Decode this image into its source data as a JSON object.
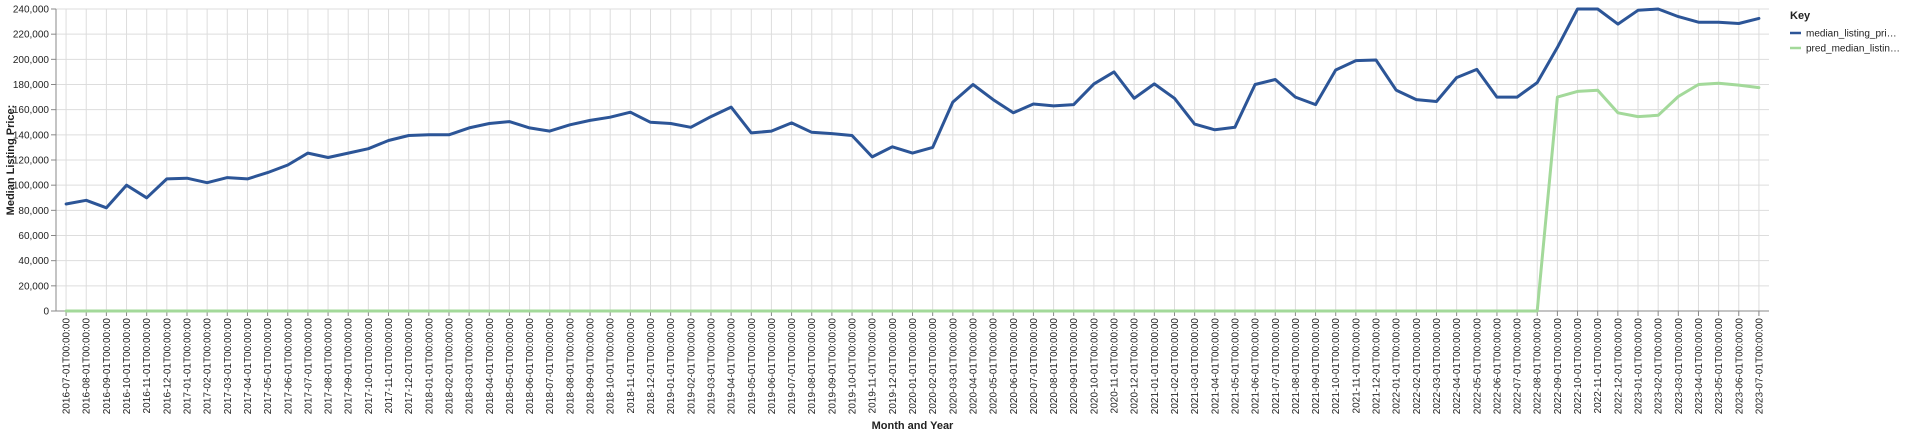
{
  "chart_data": {
    "type": "line",
    "xlabel": "Month and Year",
    "ylabel": "Median Listing Price:",
    "ylim": [
      0,
      240000
    ],
    "yticks": [
      "0",
      "20,000",
      "40,000",
      "60,000",
      "80,000",
      "100,000",
      "120,000",
      "140,000",
      "160,000",
      "180,000",
      "200,000",
      "220,000",
      "240,000"
    ],
    "grid": true,
    "legend_title": "Key",
    "legend_position": "top-right",
    "x": [
      "2016-07-01T00:00:00",
      "2016-08-01T00:00:00",
      "2016-09-01T00:00:00",
      "2016-10-01T00:00:00",
      "2016-11-01T00:00:00",
      "2016-12-01T00:00:00",
      "2017-01-01T00:00:00",
      "2017-02-01T00:00:00",
      "2017-03-01T00:00:00",
      "2017-04-01T00:00:00",
      "2017-05-01T00:00:00",
      "2017-06-01T00:00:00",
      "2017-07-01T00:00:00",
      "2017-08-01T00:00:00",
      "2017-09-01T00:00:00",
      "2017-10-01T00:00:00",
      "2017-11-01T00:00:00",
      "2017-12-01T00:00:00",
      "2018-01-01T00:00:00",
      "2018-02-01T00:00:00",
      "2018-03-01T00:00:00",
      "2018-04-01T00:00:00",
      "2018-05-01T00:00:00",
      "2018-06-01T00:00:00",
      "2018-07-01T00:00:00",
      "2018-08-01T00:00:00",
      "2018-09-01T00:00:00",
      "2018-10-01T00:00:00",
      "2018-11-01T00:00:00",
      "2018-12-01T00:00:00",
      "2019-01-01T00:00:00",
      "2019-02-01T00:00:00",
      "2019-03-01T00:00:00",
      "2019-04-01T00:00:00",
      "2019-05-01T00:00:00",
      "2019-06-01T00:00:00",
      "2019-07-01T00:00:00",
      "2019-08-01T00:00:00",
      "2019-09-01T00:00:00",
      "2019-10-01T00:00:00",
      "2019-11-01T00:00:00",
      "2019-12-01T00:00:00",
      "2020-01-01T00:00:00",
      "2020-02-01T00:00:00",
      "2020-03-01T00:00:00",
      "2020-04-01T00:00:00",
      "2020-05-01T00:00:00",
      "2020-06-01T00:00:00",
      "2020-07-01T00:00:00",
      "2020-08-01T00:00:00",
      "2020-09-01T00:00:00",
      "2020-10-01T00:00:00",
      "2020-11-01T00:00:00",
      "2020-12-01T00:00:00",
      "2021-01-01T00:00:00",
      "2021-02-01T00:00:00",
      "2021-03-01T00:00:00",
      "2021-04-01T00:00:00",
      "2021-05-01T00:00:00",
      "2021-06-01T00:00:00",
      "2021-07-01T00:00:00",
      "2021-08-01T00:00:00",
      "2021-09-01T00:00:00",
      "2021-10-01T00:00:00",
      "2021-11-01T00:00:00",
      "2021-12-01T00:00:00",
      "2022-01-01T00:00:00",
      "2022-02-01T00:00:00",
      "2022-03-01T00:00:00",
      "2022-04-01T00:00:00",
      "2022-05-01T00:00:00",
      "2022-06-01T00:00:00",
      "2022-07-01T00:00:00",
      "2022-08-01T00:00:00",
      "2022-09-01T00:00:00",
      "2022-10-01T00:00:00",
      "2022-11-01T00:00:00",
      "2022-12-01T00:00:00",
      "2023-01-01T00:00:00",
      "2023-02-01T00:00:00",
      "2023-03-01T00:00:00",
      "2023-04-01T00:00:00",
      "2023-05-01T00:00:00",
      "2023-06-01T00:00:00",
      "2023-07-01T00:00:00"
    ],
    "series": [
      {
        "name": "median_listing_pri…",
        "color": "#2c5597",
        "values": [
          85000,
          88000,
          82000,
          100000,
          90000,
          105000,
          105500,
          102000,
          106000,
          105000,
          110000,
          116000,
          125500,
          122000,
          125500,
          129000,
          135500,
          139500,
          140000,
          140000,
          145500,
          149000,
          150500,
          145500,
          143000,
          148000,
          151500,
          154000,
          158000,
          150000,
          149000,
          146000,
          154500,
          162000,
          141500,
          143000,
          149500,
          142000,
          141000,
          139500,
          122500,
          130500,
          125500,
          130000,
          166000,
          180000,
          168000,
          157500,
          164500,
          163000,
          164000,
          180500,
          190000,
          169000,
          180500,
          169000,
          148500,
          144000,
          146000,
          180000,
          184000,
          170000,
          164000,
          191500,
          199000,
          199500,
          175500,
          168000,
          166500,
          185500,
          192000,
          170000,
          170000,
          181500,
          209500,
          240000,
          240000,
          228000,
          239000,
          240000,
          234000,
          229500,
          229500,
          228500,
          232500
        ]
      },
      {
        "name": "pred_median_listin…",
        "color": "#a3d99a",
        "values": [
          0,
          0,
          0,
          0,
          0,
          0,
          0,
          0,
          0,
          0,
          0,
          0,
          0,
          0,
          0,
          0,
          0,
          0,
          0,
          0,
          0,
          0,
          0,
          0,
          0,
          0,
          0,
          0,
          0,
          0,
          0,
          0,
          0,
          0,
          0,
          0,
          0,
          0,
          0,
          0,
          0,
          0,
          0,
          0,
          0,
          0,
          0,
          0,
          0,
          0,
          0,
          0,
          0,
          0,
          0,
          0,
          0,
          0,
          0,
          0,
          0,
          0,
          0,
          0,
          0,
          0,
          0,
          0,
          0,
          0,
          0,
          0,
          0,
          0,
          170000,
          174500,
          175500,
          157500,
          154500,
          155500,
          170500,
          180000,
          181000,
          179500,
          177500
        ]
      }
    ]
  }
}
